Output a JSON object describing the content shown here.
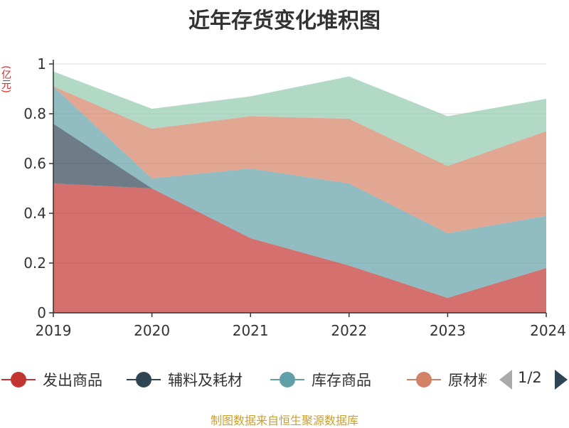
{
  "chart_data": {
    "type": "area",
    "stacked": true,
    "title": "近年存货变化堆积图",
    "unit": "(亿元)",
    "x": [
      "2019",
      "2020",
      "2021",
      "2022",
      "2023",
      "2024"
    ],
    "ylim": [
      0,
      1
    ],
    "yticks": [
      "0",
      "0.2",
      "0.4",
      "0.6",
      "0.8",
      "1"
    ],
    "grid": true,
    "series": [
      {
        "name": "发出商品",
        "color": "#c23531",
        "values": [
          0.52,
          0.5,
          0.3,
          0.19,
          0.06,
          0.18
        ]
      },
      {
        "name": "辅料及耗材",
        "color": "#2f4554",
        "values": [
          0.24,
          0.0,
          0.0,
          0.0,
          0.0,
          0.0
        ]
      },
      {
        "name": "库存商品",
        "color": "#61a0a8",
        "values": [
          0.15,
          0.04,
          0.28,
          0.33,
          0.26,
          0.21
        ]
      },
      {
        "name": "原材料",
        "color": "#d48265",
        "values": [
          0.0,
          0.2,
          0.21,
          0.26,
          0.27,
          0.34
        ]
      },
      {
        "name": "",
        "color": "#91c7ae",
        "values": [
          0.06,
          0.08,
          0.08,
          0.17,
          0.2,
          0.13
        ]
      }
    ]
  },
  "legend": {
    "items": [
      "发出商品",
      "辅料及耗材",
      "库存商品",
      "原材料"
    ],
    "page_indicator": "1/2"
  },
  "source": "制图数据来自恒生聚源数据库"
}
